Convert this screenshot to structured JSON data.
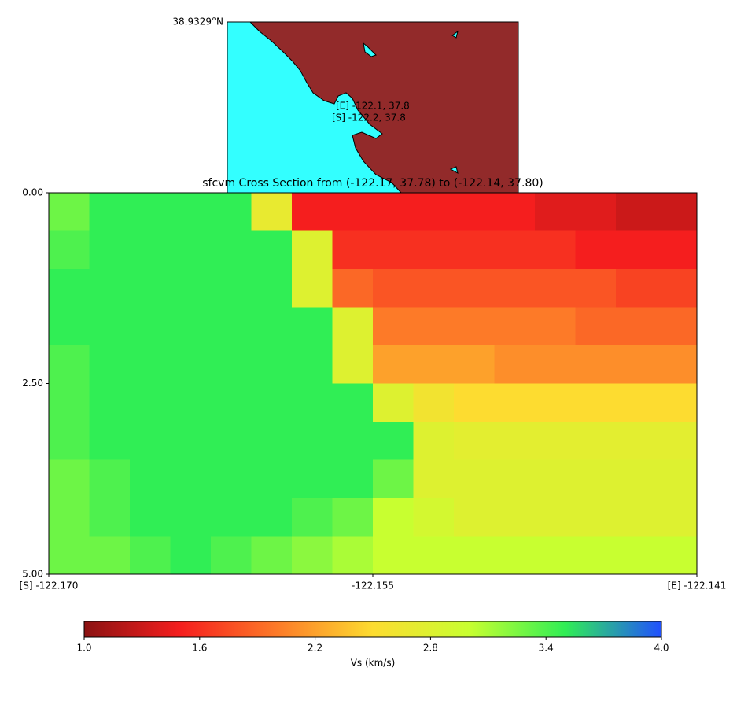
{
  "chart_data": {
    "type": "heatmap",
    "title": "sfcvm Cross Section from (-122.17, 37.78) to (-122.14, 37.80)",
    "map_label": "38.9329°N",
    "map_annotations": [
      "[E] -122.1, 37.8",
      "[S] -122.2, 37.8"
    ],
    "xlim": [
      -122.1697,
      -122.1406
    ],
    "xticks": [
      {
        "value": -122.1697,
        "label": "[S] -122.170"
      },
      {
        "value": -122.15515,
        "label": "-122.155"
      },
      {
        "value": -122.1406,
        "label": "[E] -122.141"
      }
    ],
    "ylim": [
      0,
      5
    ],
    "yticks": [
      {
        "value": 0,
        "label": "0.00"
      },
      {
        "value": 2.5,
        "label": "2.50"
      },
      {
        "value": 5,
        "label": "5.00"
      }
    ],
    "values": [
      [
        3.3,
        3.5,
        3.5,
        3.5,
        3.5,
        2.7,
        1.5,
        1.5,
        1.5,
        1.5,
        1.5,
        1.5,
        1.4,
        1.4,
        1.3,
        1.3
      ],
      [
        3.4,
        3.5,
        3.5,
        3.5,
        3.5,
        3.5,
        2.8,
        1.6,
        1.6,
        1.6,
        1.6,
        1.6,
        1.6,
        1.5,
        1.5,
        1.5
      ],
      [
        3.5,
        3.5,
        3.5,
        3.5,
        3.5,
        3.5,
        2.8,
        1.9,
        1.8,
        1.8,
        1.8,
        1.8,
        1.8,
        1.8,
        1.7,
        1.7
      ],
      [
        3.5,
        3.5,
        3.5,
        3.5,
        3.5,
        3.5,
        3.5,
        2.8,
        2.0,
        2.0,
        2.0,
        2.0,
        2.0,
        1.9,
        1.9,
        1.9
      ],
      [
        3.4,
        3.5,
        3.5,
        3.5,
        3.5,
        3.5,
        3.5,
        2.8,
        2.2,
        2.2,
        2.2,
        2.1,
        2.1,
        2.1,
        2.1,
        2.1
      ],
      [
        3.4,
        3.5,
        3.5,
        3.5,
        3.5,
        3.5,
        3.5,
        3.5,
        2.8,
        2.6,
        2.5,
        2.5,
        2.5,
        2.5,
        2.5,
        2.5
      ],
      [
        3.4,
        3.5,
        3.5,
        3.5,
        3.5,
        3.5,
        3.5,
        3.5,
        3.5,
        2.8,
        2.75,
        2.75,
        2.75,
        2.75,
        2.75,
        2.75
      ],
      [
        3.3,
        3.4,
        3.5,
        3.5,
        3.5,
        3.5,
        3.5,
        3.5,
        3.3,
        2.8,
        2.8,
        2.8,
        2.8,
        2.8,
        2.8,
        2.8
      ],
      [
        3.3,
        3.4,
        3.5,
        3.5,
        3.5,
        3.5,
        3.4,
        3.3,
        3.0,
        2.9,
        2.8,
        2.8,
        2.8,
        2.8,
        2.8,
        2.8
      ],
      [
        3.3,
        3.3,
        3.4,
        3.5,
        3.4,
        3.3,
        3.2,
        3.1,
        3.0,
        3.0,
        3.0,
        3.0,
        3.0,
        3.0,
        3.0,
        3.0
      ]
    ],
    "colormap": [
      "#8b1212",
      "#f51e1e",
      "#fd7a28",
      "#fddc30",
      "#c8ff30",
      "#30ee55",
      "#2050ff"
    ],
    "clim": [
      1.0,
      4.0
    ],
    "colorbar_label": "Vs (km/s)",
    "colorbar_ticks": [
      {
        "value": 1.0,
        "label": "1.0"
      },
      {
        "value": 1.6,
        "label": "1.6"
      },
      {
        "value": 2.2,
        "label": "2.2"
      },
      {
        "value": 2.8,
        "label": "2.8"
      },
      {
        "value": 3.4,
        "label": "3.4"
      },
      {
        "value": 4.0,
        "label": "4.0"
      }
    ]
  }
}
